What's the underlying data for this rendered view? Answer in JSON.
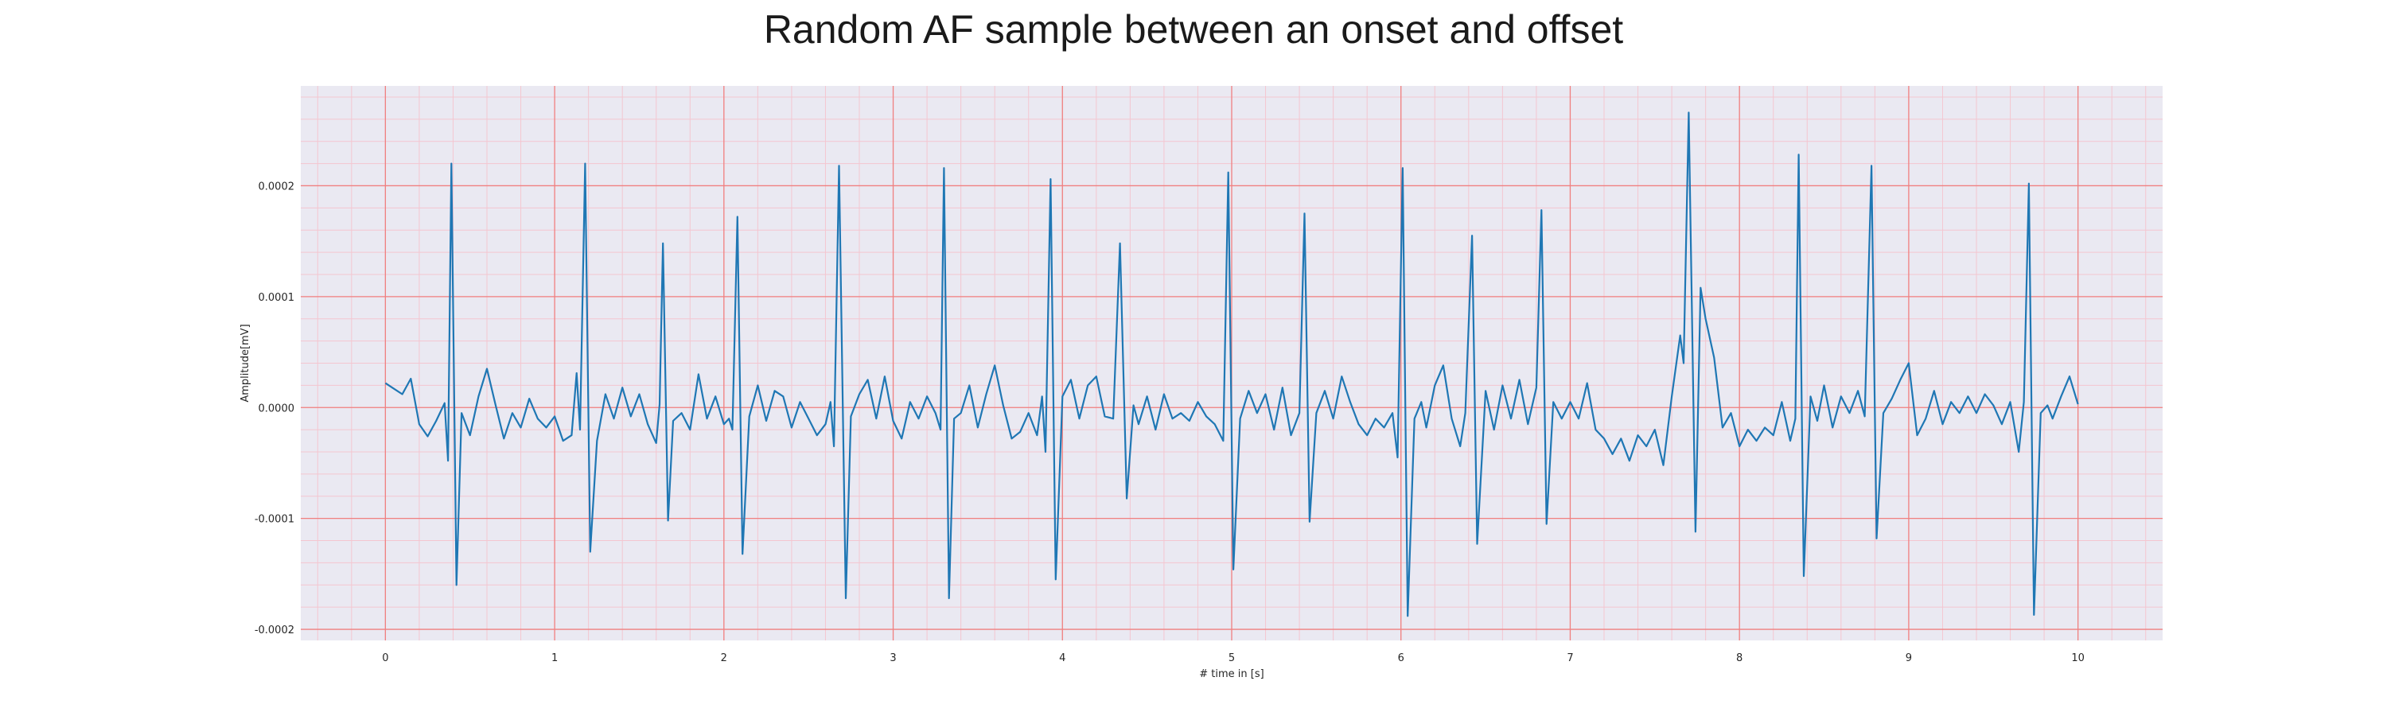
{
  "chart_data": {
    "type": "line",
    "title": "Random AF sample between an onset and offset",
    "xlabel": "# time in [s]",
    "ylabel": "Amplitude[mV]",
    "xlim": [
      -0.5,
      10.5
    ],
    "ylim": [
      -0.00021,
      0.00029
    ],
    "xticks": [
      0,
      1,
      2,
      3,
      4,
      5,
      6,
      7,
      8,
      9,
      10
    ],
    "xtick_labels": [
      "0",
      "1",
      "2",
      "3",
      "4",
      "5",
      "6",
      "7",
      "8",
      "9",
      "10"
    ],
    "yticks": [
      -0.0002,
      -0.0001,
      0.0,
      0.0001,
      0.0002
    ],
    "ytick_labels": [
      "-0.0002",
      "-0.0001",
      "0.0000",
      "0.0001",
      "0.0002"
    ],
    "grid": true,
    "colors": {
      "line": "#1f77b4",
      "background": "#eae9f2",
      "major_grid": "#f08080",
      "minor_grid": "#f4c6d0"
    },
    "series": [
      {
        "points": [
          [
            0.0,
            2.2e-05
          ],
          [
            0.05,
            1.7e-05
          ],
          [
            0.1,
            1.2e-05
          ],
          [
            0.15,
            2.6e-05
          ],
          [
            0.2,
            -1.5e-05
          ],
          [
            0.25,
            -2.6e-05
          ],
          [
            0.3,
            -1.2e-05
          ],
          [
            0.35,
            4e-06
          ],
          [
            0.37,
            -4.8e-05
          ],
          [
            0.39,
            0.00022
          ],
          [
            0.42,
            -0.00016
          ],
          [
            0.45,
            -5e-06
          ],
          [
            0.5,
            -2.5e-05
          ],
          [
            0.55,
            1e-05
          ],
          [
            0.6,
            3.5e-05
          ],
          [
            0.65,
            3e-06
          ],
          [
            0.7,
            -2.8e-05
          ],
          [
            0.75,
            -5e-06
          ],
          [
            0.8,
            -1.8e-05
          ],
          [
            0.85,
            8e-06
          ],
          [
            0.9,
            -1e-05
          ],
          [
            0.95,
            -1.8e-05
          ],
          [
            1.0,
            -8e-06
          ],
          [
            1.05,
            -3e-05
          ],
          [
            1.1,
            -2.5e-05
          ],
          [
            1.13,
            3.1e-05
          ],
          [
            1.15,
            -2e-05
          ],
          [
            1.18,
            0.00022
          ],
          [
            1.21,
            -0.00013
          ],
          [
            1.25,
            -3e-05
          ],
          [
            1.3,
            1.2e-05
          ],
          [
            1.35,
            -1e-05
          ],
          [
            1.4,
            1.8e-05
          ],
          [
            1.45,
            -8e-06
          ],
          [
            1.5,
            1.2e-05
          ],
          [
            1.55,
            -1.5e-05
          ],
          [
            1.6,
            -3.2e-05
          ],
          [
            1.62,
            3e-06
          ],
          [
            1.64,
            0.000148
          ],
          [
            1.67,
            -0.000102
          ],
          [
            1.7,
            -1.2e-05
          ],
          [
            1.75,
            -5e-06
          ],
          [
            1.8,
            -2e-05
          ],
          [
            1.85,
            3e-05
          ],
          [
            1.9,
            -1e-05
          ],
          [
            1.95,
            1e-05
          ],
          [
            2.0,
            -1.5e-05
          ],
          [
            2.03,
            -1e-05
          ],
          [
            2.05,
            -2e-05
          ],
          [
            2.08,
            0.000172
          ],
          [
            2.11,
            -0.000132
          ],
          [
            2.15,
            -8e-06
          ],
          [
            2.2,
            2e-05
          ],
          [
            2.25,
            -1.2e-05
          ],
          [
            2.3,
            1.5e-05
          ],
          [
            2.35,
            1e-05
          ],
          [
            2.4,
            -1.8e-05
          ],
          [
            2.45,
            5e-06
          ],
          [
            2.5,
            -1e-05
          ],
          [
            2.55,
            -2.5e-05
          ],
          [
            2.6,
            -1.5e-05
          ],
          [
            2.63,
            5e-06
          ],
          [
            2.65,
            -3.5e-05
          ],
          [
            2.68,
            0.000218
          ],
          [
            2.72,
            -0.000172
          ],
          [
            2.75,
            -8e-06
          ],
          [
            2.8,
            1.2e-05
          ],
          [
            2.85,
            2.5e-05
          ],
          [
            2.9,
            -1e-05
          ],
          [
            2.95,
            2.8e-05
          ],
          [
            3.0,
            -1.2e-05
          ],
          [
            3.05,
            -2.8e-05
          ],
          [
            3.1,
            5e-06
          ],
          [
            3.15,
            -1e-05
          ],
          [
            3.2,
            1e-05
          ],
          [
            3.25,
            -5e-06
          ],
          [
            3.28,
            -2e-05
          ],
          [
            3.3,
            0.000216
          ],
          [
            3.33,
            -0.000172
          ],
          [
            3.36,
            -1e-05
          ],
          [
            3.4,
            -5e-06
          ],
          [
            3.45,
            2e-05
          ],
          [
            3.5,
            -1.8e-05
          ],
          [
            3.55,
            1.2e-05
          ],
          [
            3.6,
            3.8e-05
          ],
          [
            3.65,
            2e-06
          ],
          [
            3.7,
            -2.8e-05
          ],
          [
            3.75,
            -2.2e-05
          ],
          [
            3.8,
            -5e-06
          ],
          [
            3.85,
            -2.5e-05
          ],
          [
            3.88,
            1e-05
          ],
          [
            3.9,
            -4e-05
          ],
          [
            3.93,
            0.000206
          ],
          [
            3.96,
            -0.000155
          ],
          [
            4.0,
            1e-05
          ],
          [
            4.05,
            2.5e-05
          ],
          [
            4.1,
            -1e-05
          ],
          [
            4.15,
            2e-05
          ],
          [
            4.2,
            2.8e-05
          ],
          [
            4.25,
            -8e-06
          ],
          [
            4.3,
            -1e-05
          ],
          [
            4.34,
            0.000148
          ],
          [
            4.38,
            -8.2e-05
          ],
          [
            4.42,
            2e-06
          ],
          [
            4.45,
            -1.5e-05
          ],
          [
            4.5,
            1e-05
          ],
          [
            4.55,
            -2e-05
          ],
          [
            4.6,
            1.2e-05
          ],
          [
            4.65,
            -1e-05
          ],
          [
            4.7,
            -5e-06
          ],
          [
            4.75,
            -1.2e-05
          ],
          [
            4.8,
            5e-06
          ],
          [
            4.85,
            -8e-06
          ],
          [
            4.9,
            -1.5e-05
          ],
          [
            4.95,
            -3e-05
          ],
          [
            4.98,
            0.000212
          ],
          [
            5.01,
            -0.000146
          ],
          [
            5.05,
            -1e-05
          ],
          [
            5.1,
            1.5e-05
          ],
          [
            5.15,
            -5e-06
          ],
          [
            5.2,
            1.2e-05
          ],
          [
            5.25,
            -2e-05
          ],
          [
            5.3,
            1.8e-05
          ],
          [
            5.35,
            -2.5e-05
          ],
          [
            5.4,
            -5e-06
          ],
          [
            5.43,
            0.000175
          ],
          [
            5.46,
            -0.000103
          ],
          [
            5.5,
            -5e-06
          ],
          [
            5.55,
            1.5e-05
          ],
          [
            5.6,
            -1e-05
          ],
          [
            5.65,
            2.8e-05
          ],
          [
            5.7,
            5e-06
          ],
          [
            5.75,
            -1.5e-05
          ],
          [
            5.8,
            -2.5e-05
          ],
          [
            5.85,
            -1e-05
          ],
          [
            5.9,
            -1.8e-05
          ],
          [
            5.95,
            -5e-06
          ],
          [
            5.98,
            -4.5e-05
          ],
          [
            6.01,
            0.000216
          ],
          [
            6.04,
            -0.000188
          ],
          [
            6.08,
            -1e-05
          ],
          [
            6.12,
            5e-06
          ],
          [
            6.15,
            -1.8e-05
          ],
          [
            6.2,
            2e-05
          ],
          [
            6.25,
            3.8e-05
          ],
          [
            6.3,
            -1e-05
          ],
          [
            6.35,
            -3.5e-05
          ],
          [
            6.38,
            -5e-06
          ],
          [
            6.42,
            0.000155
          ],
          [
            6.45,
            -0.000123
          ],
          [
            6.5,
            1.5e-05
          ],
          [
            6.55,
            -2e-05
          ],
          [
            6.6,
            2e-05
          ],
          [
            6.65,
            -1e-05
          ],
          [
            6.7,
            2.5e-05
          ],
          [
            6.75,
            -1.5e-05
          ],
          [
            6.8,
            1.8e-05
          ],
          [
            6.83,
            0.000178
          ],
          [
            6.86,
            -0.000105
          ],
          [
            6.9,
            5e-06
          ],
          [
            6.95,
            -1e-05
          ],
          [
            7.0,
            5e-06
          ],
          [
            7.05,
            -1e-05
          ],
          [
            7.1,
            2.2e-05
          ],
          [
            7.15,
            -2e-05
          ],
          [
            7.2,
            -2.8e-05
          ],
          [
            7.25,
            -4.2e-05
          ],
          [
            7.3,
            -2.8e-05
          ],
          [
            7.35,
            -4.8e-05
          ],
          [
            7.4,
            -2.5e-05
          ],
          [
            7.45,
            -3.5e-05
          ],
          [
            7.5,
            -2e-05
          ],
          [
            7.55,
            -5.2e-05
          ],
          [
            7.6,
            1e-05
          ],
          [
            7.65,
            6.5e-05
          ],
          [
            7.67,
            4e-05
          ],
          [
            7.7,
            0.000266
          ],
          [
            7.74,
            -0.000112
          ],
          [
            7.77,
            0.000108
          ],
          [
            7.8,
            8e-05
          ],
          [
            7.85,
            4.5e-05
          ],
          [
            7.9,
            -1.8e-05
          ],
          [
            7.95,
            -5e-06
          ],
          [
            8.0,
            -3.5e-05
          ],
          [
            8.05,
            -2e-05
          ],
          [
            8.1,
            -3e-05
          ],
          [
            8.15,
            -1.8e-05
          ],
          [
            8.2,
            -2.5e-05
          ],
          [
            8.25,
            5e-06
          ],
          [
            8.3,
            -3e-05
          ],
          [
            8.33,
            -1e-05
          ],
          [
            8.35,
            0.000228
          ],
          [
            8.38,
            -0.000152
          ],
          [
            8.42,
            1e-05
          ],
          [
            8.46,
            -1.2e-05
          ],
          [
            8.5,
            2e-05
          ],
          [
            8.55,
            -1.8e-05
          ],
          [
            8.6,
            1e-05
          ],
          [
            8.65,
            -5e-06
          ],
          [
            8.7,
            1.5e-05
          ],
          [
            8.74,
            -8e-06
          ],
          [
            8.78,
            0.000218
          ],
          [
            8.81,
            -0.000118
          ],
          [
            8.85,
            -5e-06
          ],
          [
            8.9,
            8e-06
          ],
          [
            8.95,
            2.5e-05
          ],
          [
            9.0,
            4e-05
          ],
          [
            9.05,
            -2.5e-05
          ],
          [
            9.1,
            -1e-05
          ],
          [
            9.15,
            1.5e-05
          ],
          [
            9.2,
            -1.5e-05
          ],
          [
            9.25,
            5e-06
          ],
          [
            9.3,
            -5e-06
          ],
          [
            9.35,
            1e-05
          ],
          [
            9.4,
            -5e-06
          ],
          [
            9.45,
            1.2e-05
          ],
          [
            9.5,
            2e-06
          ],
          [
            9.55,
            -1.5e-05
          ],
          [
            9.6,
            5e-06
          ],
          [
            9.65,
            -4e-05
          ],
          [
            9.68,
            5e-06
          ],
          [
            9.71,
            0.000202
          ],
          [
            9.74,
            -0.000187
          ],
          [
            9.78,
            -5e-06
          ],
          [
            9.82,
            2e-06
          ],
          [
            9.85,
            -1e-05
          ],
          [
            9.9,
            1e-05
          ],
          [
            9.95,
            2.8e-05
          ],
          [
            10.0,
            3e-06
          ]
        ]
      }
    ]
  }
}
